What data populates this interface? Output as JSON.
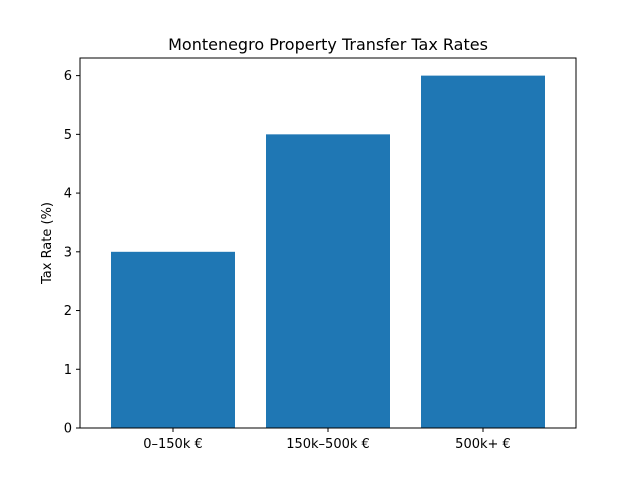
{
  "colors": {
    "bar": "#1f77b4",
    "axis": "#000000",
    "background": "#ffffff"
  },
  "chart_data": {
    "type": "bar",
    "title": "Montenegro Property Transfer Tax Rates",
    "xlabel": "",
    "ylabel": "Tax Rate (%)",
    "categories": [
      "0–150k €",
      "150k–500k €",
      "500k+ €"
    ],
    "values": [
      3,
      5,
      6
    ],
    "ylim": [
      0,
      6.3
    ],
    "yticks": [
      0,
      1,
      2,
      3,
      4,
      5,
      6
    ],
    "grid": false,
    "legend": "none"
  }
}
